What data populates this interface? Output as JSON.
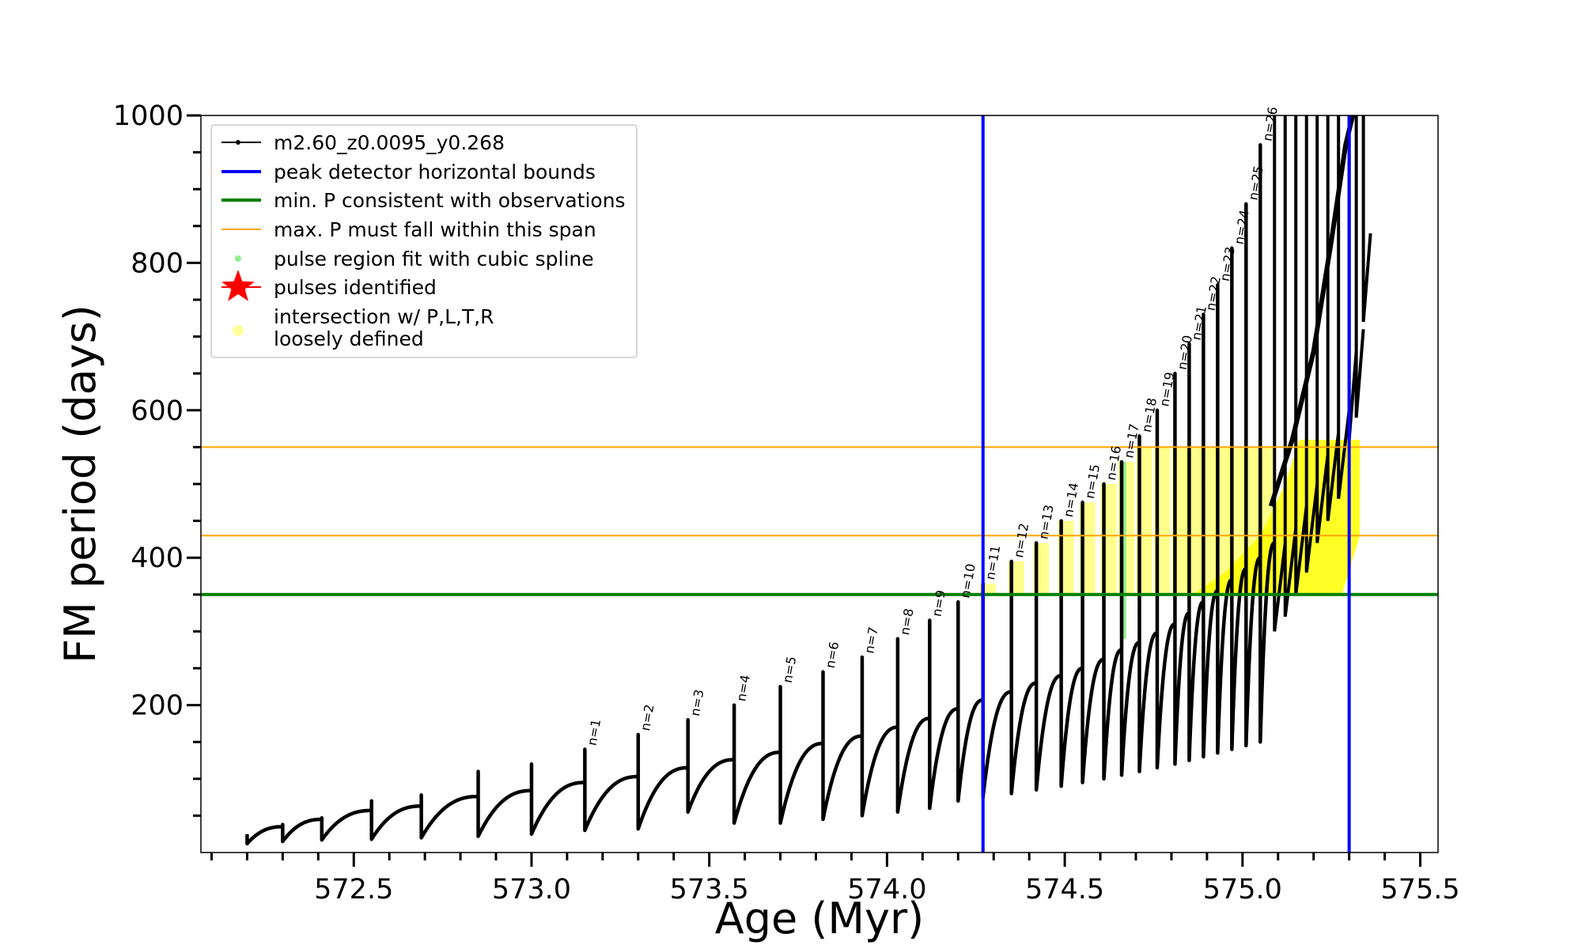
{
  "chart_data": {
    "type": "line",
    "title": "",
    "xlabel": "Age (Myr)",
    "ylabel": "FM period (days)",
    "xlim": [
      572.07,
      575.55
    ],
    "ylim": [
      0,
      1000
    ],
    "x_ticks": [
      572.5,
      573.0,
      573.5,
      574.0,
      574.5,
      575.0,
      575.5
    ],
    "x_tick_labels": [
      "572.5",
      "573.0",
      "573.5",
      "574.0",
      "574.5",
      "575.0",
      "575.5"
    ],
    "y_ticks": [
      200,
      400,
      600,
      800,
      1000
    ],
    "y_tick_labels": [
      "200",
      "400",
      "600",
      "800",
      "1000"
    ],
    "grid": false,
    "legend_position": "top-left",
    "legend": [
      {
        "label": "m2.60_z0.0095_y0.268",
        "style": "line-dot",
        "color": "#000000"
      },
      {
        "label": "peak detector horizontal bounds",
        "style": "line",
        "color": "#0000ff"
      },
      {
        "label": "min. P consistent with observations",
        "style": "line",
        "color": "#008000"
      },
      {
        "label": "max. P must fall within this span",
        "style": "line",
        "color": "#ffa500"
      },
      {
        "label": "pulse region fit with cubic spline",
        "style": "dot",
        "color": "#90ee90"
      },
      {
        "label": "pulses identified",
        "style": "star",
        "color": "#ff0000"
      },
      {
        "label": "intersection w/ P,L,T,R",
        "label2": "loosely defined",
        "style": "dot",
        "color": "#ffff99"
      }
    ],
    "vlines": [
      {
        "name": "peak detector horizontal bounds",
        "x": 574.27,
        "color": "#0000ff"
      },
      {
        "name": "peak detector horizontal bounds",
        "x": 575.3,
        "color": "#0000ff"
      }
    ],
    "hlines": [
      {
        "name": "min. P consistent with observations",
        "y": 350,
        "color": "#008000"
      },
      {
        "name": "max. P must fall within this span",
        "y": 430,
        "color": "#ffa500"
      },
      {
        "name": "max. P must fall within this span",
        "y": 550,
        "color": "#ffa500"
      }
    ],
    "pulses": [
      {
        "n": "n=1",
        "x": 573.15,
        "peak": 140,
        "base_after": 30,
        "prev_max": 95
      },
      {
        "n": "n=2",
        "x": 573.3,
        "peak": 160,
        "base_after": 32,
        "prev_max": 103
      },
      {
        "n": "n=3",
        "x": 573.44,
        "peak": 180,
        "base_after": 55,
        "prev_max": 115
      },
      {
        "n": "n=4",
        "x": 573.57,
        "peak": 200,
        "base_after": 40,
        "prev_max": 126
      },
      {
        "n": "n=5",
        "x": 573.7,
        "peak": 225,
        "base_after": 40,
        "prev_max": 136
      },
      {
        "n": "n=6",
        "x": 573.82,
        "peak": 245,
        "base_after": 45,
        "prev_max": 148
      },
      {
        "n": "n=7",
        "x": 573.93,
        "peak": 265,
        "base_after": 50,
        "prev_max": 158
      },
      {
        "n": "n=8",
        "x": 574.03,
        "peak": 290,
        "base_after": 55,
        "prev_max": 170
      },
      {
        "n": "n=9",
        "x": 574.12,
        "peak": 315,
        "base_after": 60,
        "prev_max": 182
      },
      {
        "n": "n=10",
        "x": 574.2,
        "peak": 340,
        "base_after": 70,
        "prev_max": 195
      },
      {
        "n": "n=11",
        "x": 574.27,
        "peak": 365,
        "base_after": 75,
        "prev_max": 207
      },
      {
        "n": "n=12",
        "x": 574.35,
        "peak": 395,
        "base_after": 80,
        "prev_max": 218
      },
      {
        "n": "n=13",
        "x": 574.42,
        "peak": 420,
        "base_after": 85,
        "prev_max": 230
      },
      {
        "n": "n=14",
        "x": 574.49,
        "peak": 450,
        "base_after": 90,
        "prev_max": 240
      },
      {
        "n": "n=15",
        "x": 574.55,
        "peak": 475,
        "base_after": 95,
        "prev_max": 250
      },
      {
        "n": "n=16",
        "x": 574.61,
        "peak": 500,
        "base_after": 100,
        "prev_max": 262
      },
      {
        "n": "n=17",
        "x": 574.66,
        "peak": 530,
        "base_after": 105,
        "prev_max": 275
      },
      {
        "n": "n=18",
        "x": 574.71,
        "peak": 565,
        "base_after": 110,
        "prev_max": 285
      },
      {
        "n": "n=19",
        "x": 574.76,
        "peak": 600,
        "base_after": 115,
        "prev_max": 298
      },
      {
        "n": "n=20",
        "x": 574.81,
        "peak": 650,
        "base_after": 120,
        "prev_max": 310
      },
      {
        "n": "n=21",
        "x": 574.85,
        "peak": 690,
        "base_after": 125,
        "prev_max": 325
      },
      {
        "n": "n=22",
        "x": 574.89,
        "peak": 730,
        "base_after": 130,
        "prev_max": 340
      },
      {
        "n": "n=23",
        "x": 574.93,
        "peak": 770,
        "base_after": 135,
        "prev_max": 355
      },
      {
        "n": "n=24",
        "x": 574.97,
        "peak": 820,
        "base_after": 140,
        "prev_max": 370
      },
      {
        "n": "n=25",
        "x": 575.01,
        "peak": 880,
        "base_after": 145,
        "prev_max": 385
      },
      {
        "n": "n=26",
        "x": 575.05,
        "peak": 960,
        "base_after": 150,
        "prev_max": 400
      }
    ],
    "early_pulses": [
      {
        "x": 572.2,
        "peak": 25,
        "base_after": 12,
        "prev_max": 25
      },
      {
        "x": 572.3,
        "peak": 38,
        "base_after": 15,
        "prev_max": 35
      },
      {
        "x": 572.41,
        "peak": 47,
        "base_after": 17,
        "prev_max": 45
      },
      {
        "x": 572.55,
        "peak": 70,
        "base_after": 18,
        "prev_max": 57
      },
      {
        "x": 572.69,
        "peak": 78,
        "base_after": 20,
        "prev_max": 63
      },
      {
        "x": 572.85,
        "peak": 110,
        "base_after": 22,
        "prev_max": 76
      },
      {
        "x": 573.0,
        "peak": 120,
        "base_after": 25,
        "prev_max": 84
      }
    ],
    "late_pulses_unlabeled": [
      {
        "x": 575.09,
        "peak": 1000,
        "base_after": 300
      },
      {
        "x": 575.12,
        "peak": 1000,
        "base_after": 320
      },
      {
        "x": 575.15,
        "peak": 1000,
        "base_after": 350
      },
      {
        "x": 575.18,
        "peak": 1000,
        "base_after": 380
      },
      {
        "x": 575.21,
        "peak": 1000,
        "base_after": 420
      },
      {
        "x": 575.24,
        "peak": 1000,
        "base_after": 450
      },
      {
        "x": 575.27,
        "peak": 1000,
        "base_after": 480
      },
      {
        "x": 575.3,
        "peak": 1000,
        "base_after": 560
      },
      {
        "x": 575.32,
        "peak": 1000,
        "base_after": 590
      },
      {
        "x": 575.34,
        "peak": 1000,
        "base_after": 720
      }
    ]
  }
}
